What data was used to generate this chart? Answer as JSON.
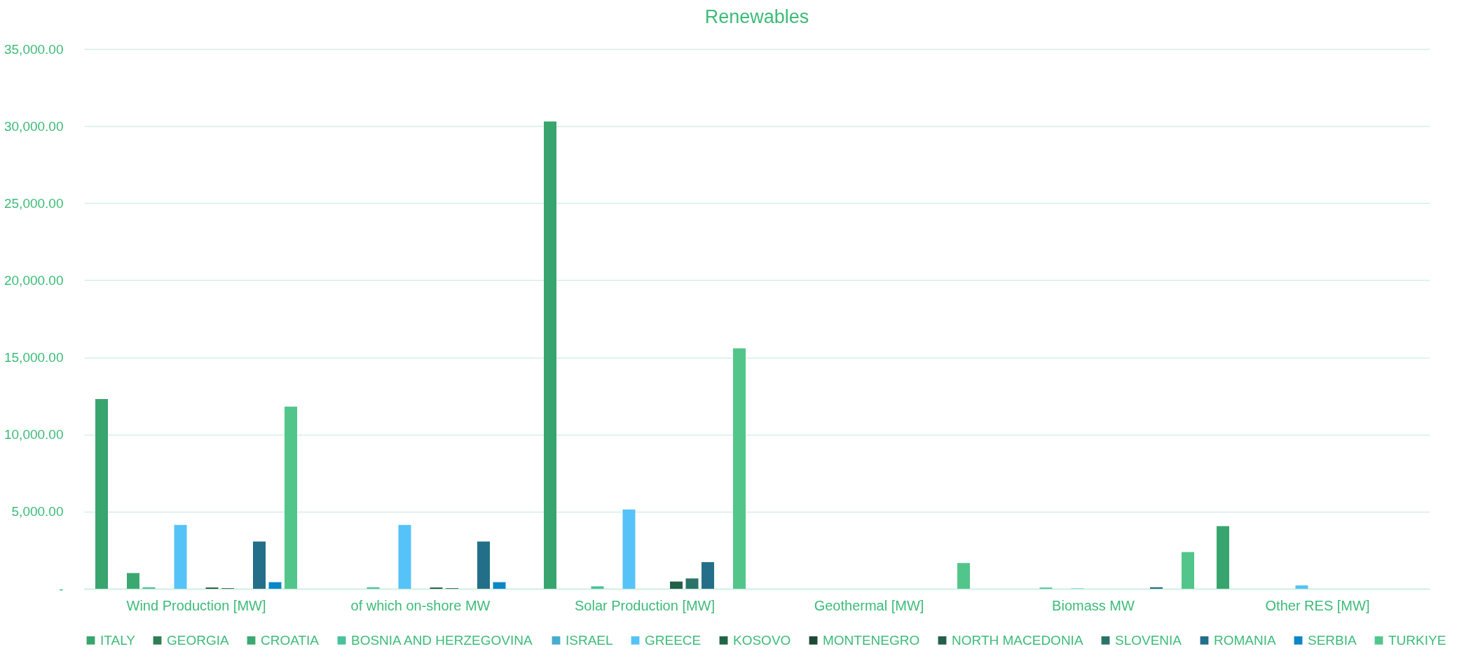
{
  "chart_data": {
    "type": "bar",
    "title": "Renewables",
    "categories": [
      "Wind Production [MW]",
      "of which on-shore MW",
      "Solar Production [MW]",
      "Geothermal [MW]",
      "Biomass MW",
      "Other RES [MW]"
    ],
    "series": [
      {
        "name": "ITALY",
        "color": "#38a56e",
        "values": [
          12300,
          0,
          30300,
          0,
          0,
          4060
        ]
      },
      {
        "name": "GEORGIA",
        "color": "#2e7d55",
        "values": [
          0,
          0,
          0,
          0,
          0,
          0
        ]
      },
      {
        "name": "CROATIA",
        "color": "#3aa870",
        "values": [
          1020,
          0,
          0,
          0,
          0,
          0
        ]
      },
      {
        "name": "BOSNIA AND HERZEGOVINA",
        "color": "#47c29b",
        "values": [
          100,
          100,
          160,
          0,
          80,
          0
        ]
      },
      {
        "name": "ISRAEL",
        "color": "#46add0",
        "values": [
          0,
          0,
          0,
          0,
          0,
          0
        ]
      },
      {
        "name": "GREECE",
        "color": "#55c3f8",
        "values": [
          4140,
          4140,
          5140,
          0,
          30,
          220
        ]
      },
      {
        "name": "KOSOVO",
        "color": "#226444",
        "values": [
          0,
          0,
          0,
          0,
          0,
          0
        ]
      },
      {
        "name": "MONTENEGRO",
        "color": "#1c4a35",
        "values": [
          80,
          80,
          0,
          0,
          0,
          0
        ]
      },
      {
        "name": "NORTH MACEDONIA",
        "color": "#245f47",
        "values": [
          40,
          40,
          470,
          0,
          0,
          0
        ]
      },
      {
        "name": "SLOVENIA",
        "color": "#2a7467",
        "values": [
          0,
          0,
          670,
          0,
          0,
          0
        ]
      },
      {
        "name": "ROMANIA",
        "color": "#236f89",
        "values": [
          3060,
          3060,
          1730,
          0,
          100,
          0
        ]
      },
      {
        "name": "SERBIA",
        "color": "#0b87c7",
        "values": [
          430,
          430,
          0,
          0,
          0,
          0
        ]
      },
      {
        "name": "TURKIYE",
        "color": "#52c68a",
        "values": [
          11810,
          0,
          15590,
          1670,
          2380,
          0
        ]
      }
    ],
    "ylim": [
      0,
      35000
    ],
    "yticks": [
      {
        "value": 0,
        "label": "-"
      },
      {
        "value": 5000,
        "label": "5,000.00"
      },
      {
        "value": 10000,
        "label": "10,000.00"
      },
      {
        "value": 15000,
        "label": "15,000.00"
      },
      {
        "value": 20000,
        "label": "20,000.00"
      },
      {
        "value": 25000,
        "label": "25,000.00"
      },
      {
        "value": 30000,
        "label": "30,000.00"
      },
      {
        "value": 35000,
        "label": "35,000.00"
      }
    ],
    "grid": "y",
    "legend": "bottom"
  }
}
